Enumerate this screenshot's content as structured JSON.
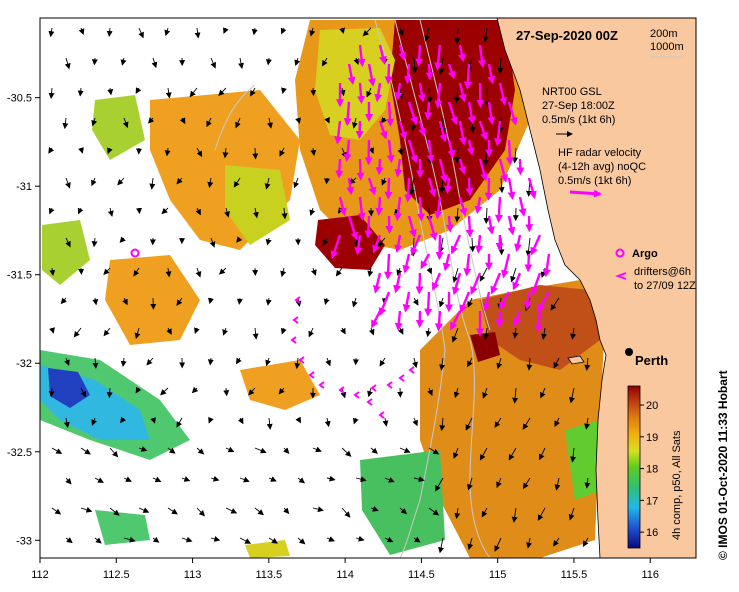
{
  "map": {
    "title": "27-Sep-2020 00Z",
    "lon_ticks": [
      "112",
      "112.5",
      "113",
      "113.5",
      "114",
      "114.5",
      "115",
      "115.5",
      "116"
    ],
    "lat_ticks": [
      "-30.5",
      "-31",
      "-31.5",
      "-32",
      "-32.5",
      "-33"
    ],
    "lon_range": [
      112,
      116.3
    ],
    "lat_range": [
      -33.1,
      -30.05
    ]
  },
  "legend": {
    "depth_200": "200m",
    "depth_1000": "1000m",
    "gsl_line1": "NRT00 GSL",
    "gsl_line2": "27-Sep 18:00Z",
    "gsl_line3": "0.5m/s (1kt 6h)",
    "hf_line1": "HF radar velocity",
    "hf_line2": "(4-12h avg) noQC",
    "hf_line3": "0.5m/s (1kt 6h)",
    "argo_label": "Argo",
    "drifter_line1": "drifters@6h",
    "drifter_line2": "to 27/09 12Z",
    "argo_color": "#ff00ff",
    "radar_color": "#ff00ff"
  },
  "city": {
    "name": "Perth",
    "lon": 115.86,
    "lat": -31.95
  },
  "colorbar": {
    "ticks": [
      "20",
      "19",
      "18",
      "17",
      "16"
    ],
    "label": "4h comp, p50, All Sats",
    "range": [
      15.5,
      20.6
    ]
  },
  "credit": "© IMOS 01-Oct-2020 11:33 Hobart",
  "colors": {
    "land": "#f9c89f",
    "coast": "#000000",
    "isobath": "#c8c8c8"
  }
}
